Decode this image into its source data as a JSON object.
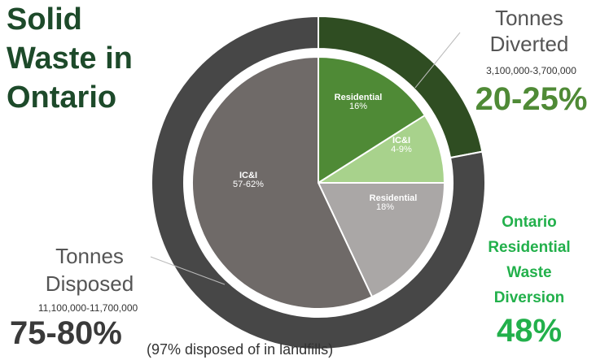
{
  "chart_data": {
    "type": "donut",
    "title": "Solid Waste in Ontario",
    "rings": [
      {
        "categories": [
          "Tonnes Diverted",
          "Tonnes Disposed"
        ],
        "values": [
          22,
          78
        ],
        "value_labels": [
          "20-25%",
          "75-80%"
        ],
        "ranges": [
          "3,100,000-3,700,000",
          "11,100,000-11,700,000"
        ],
        "colors": [
          "#2f4d22",
          "#474747"
        ]
      },
      {
        "categories": [
          "Residential",
          "IC&I",
          "Residential",
          "IC&I"
        ],
        "values": [
          16,
          9,
          18,
          57
        ],
        "value_labels": [
          "16%",
          "4-9%",
          "18%",
          "57-62%"
        ],
        "colors": [
          "#4f8a36",
          "#a8d28c",
          "#aaa7a6",
          "#6f6a68"
        ]
      }
    ],
    "annotation": "(97% disposed of in landfills)",
    "callout": {
      "title": "Ontario Residential Waste Diversion",
      "value": 48,
      "value_label": "48%"
    }
  }
}
